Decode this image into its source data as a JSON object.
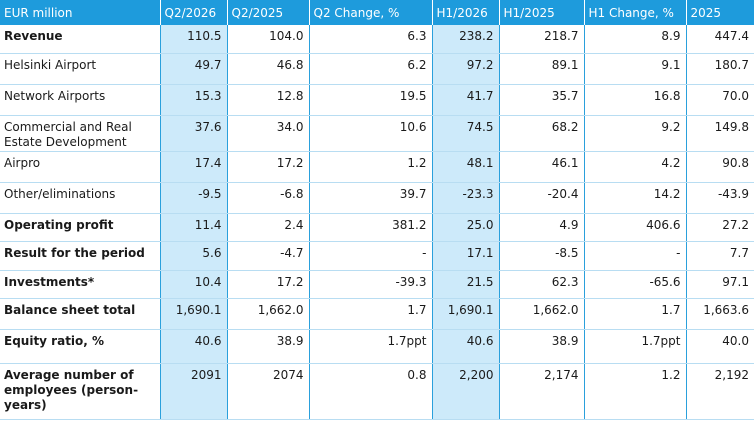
{
  "table": {
    "headers": [
      "EUR million",
      "Q2/2026",
      "Q2/2025",
      "Q2 Change, %",
      "H1/2026",
      "H1/2025",
      "H1 Change, %",
      "2025"
    ],
    "rows": [
      {
        "label": "Revenue",
        "bold": true,
        "values": [
          "110.5",
          "104.0",
          "6.3",
          "238.2",
          "218.7",
          "8.9",
          "447.4"
        ]
      },
      {
        "label": "Helsinki Airport",
        "bold": false,
        "values": [
          "49.7",
          "46.8",
          "6.2",
          "97.2",
          "89.1",
          "9.1",
          "180.7"
        ]
      },
      {
        "label": "Network Airports",
        "bold": false,
        "values": [
          "15.3",
          "12.8",
          "19.5",
          "41.7",
          "35.7",
          "16.8",
          "70.0"
        ]
      },
      {
        "label": "Commercial and Real Estate Development",
        "bold": false,
        "values": [
          "37.6",
          "34.0",
          "10.6",
          "74.5",
          "68.2",
          "9.2",
          "149.8"
        ]
      },
      {
        "label": "Airpro",
        "bold": false,
        "values": [
          "17.4",
          "17.2",
          "1.2",
          "48.1",
          "46.1",
          "4.2",
          "90.8"
        ]
      },
      {
        "label": "Other/eliminations",
        "bold": false,
        "values": [
          "-9.5",
          "-6.8",
          "39.7",
          "-23.3",
          "-20.4",
          "14.2",
          "-43.9"
        ]
      },
      {
        "label": "Operating profit",
        "bold": true,
        "values": [
          "11.4",
          "2.4",
          "381.2",
          "25.0",
          "4.9",
          "406.6",
          "27.2"
        ]
      },
      {
        "label": "Result for the period",
        "bold": true,
        "values": [
          "5.6",
          "-4.7",
          "-",
          "17.1",
          "-8.5",
          "-",
          "7.7"
        ]
      },
      {
        "label": "Investments*",
        "bold": true,
        "values": [
          "10.4",
          "17.2",
          "-39.3",
          "21.5",
          "62.3",
          "-65.6",
          "97.1"
        ]
      },
      {
        "label": "Balance sheet total",
        "bold": true,
        "values": [
          "1,690.1",
          "1,662.0",
          "1.7",
          "1,690.1",
          "1,662.0",
          "1.7",
          "1,663.6"
        ]
      },
      {
        "label": "Equity ratio, %",
        "bold": true,
        "values": [
          "40.6",
          "38.9",
          "1.7ppt",
          "40.6",
          "38.9",
          "1.7ppt",
          "40.0"
        ]
      },
      {
        "label": "Average number of employees (person-years)",
        "bold": true,
        "values": [
          "2091",
          "2074",
          "0.8",
          "2,200",
          "2,174",
          "1.2",
          "2,192"
        ]
      }
    ]
  },
  "highlight_color": "#cdeafa",
  "header_color": "#1e9bdc"
}
